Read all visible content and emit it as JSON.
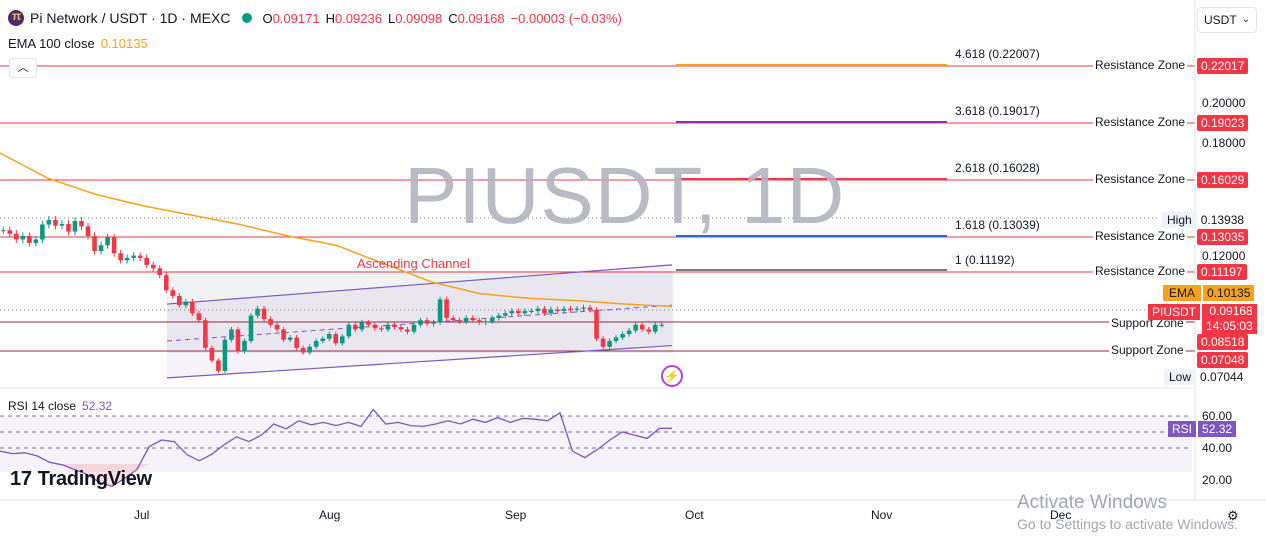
{
  "header": {
    "symbol": "Pi Network / USDT · 1D · MEXC",
    "o_label": "O",
    "o": "0.09171",
    "h_label": "H",
    "h": "0.09236",
    "l_label": "L",
    "l": "0.09098",
    "c_label": "C",
    "c": "0.09168",
    "change": "−0.00003 (−0.03%)"
  },
  "ema_indicator": {
    "label": "EMA 100 close",
    "value": "0.10135"
  },
  "currency_button": "USDT",
  "watermark": "PIUSDT, 1D",
  "channel_label": "Ascending Channel",
  "fib_levels": [
    {
      "label": "4.618 (0.22007)",
      "color": "#f7a21b"
    },
    {
      "label": "3.618 (0.19017)",
      "color": "#9c27b0"
    },
    {
      "label": "2.618 (0.16028)",
      "color": "#f23645"
    },
    {
      "label": "1.618 (0.13039)",
      "color": "#2962ff"
    },
    {
      "label": "1 (0.11192)",
      "color": "#787b86"
    }
  ],
  "zones": [
    {
      "label": "Resistance Zone",
      "price": "0.22017"
    },
    {
      "label": "Resistance Zone",
      "price": "0.19023"
    },
    {
      "label": "Resistance Zone",
      "price": "0.16029"
    },
    {
      "label": "Resistance Zone",
      "price": "0.13035"
    },
    {
      "label": "Resistance Zone",
      "price": "0.11197"
    },
    {
      "label": "Support Zone",
      "price": "0.08518"
    },
    {
      "label": "Support Zone",
      "price": "0.07048"
    }
  ],
  "axis_ticks": [
    "0.20000",
    "0.18000",
    "0.12000"
  ],
  "high_tag": {
    "label": "High",
    "value": "0.13938"
  },
  "low_tag": {
    "label": "Low",
    "value": "0.07044"
  },
  "ema_tag": {
    "label": "EMA",
    "value": "0.10135"
  },
  "current_tag": {
    "label": "PIUSDT",
    "price": "0.09168",
    "countdown": "14:05:03"
  },
  "rsi": {
    "label": "RSI 14 close",
    "value": "52.32",
    "tag_label": "RSI",
    "tag_value": "52.32",
    "ticks": [
      "60.00",
      "40.00",
      "20.00"
    ]
  },
  "branding": "TradingView",
  "x_axis_months": [
    "Jul",
    "Aug",
    "Sep",
    "Oct",
    "Nov",
    "Dec"
  ],
  "overlay": {
    "line1": "Activate Windows",
    "line2": "Go to Settings to activate Windows."
  },
  "colors": {
    "up": "#089981",
    "down": "#f23645",
    "ema": "#f7a21b",
    "rsi": "#7e57c2",
    "channel": "#7e57c2"
  },
  "chart_data": {
    "type": "candlestick",
    "interval": "1D",
    "price_closes": [
      0.1345,
      0.133,
      0.1305,
      0.132,
      0.129,
      0.1305,
      0.137,
      0.139,
      0.1365,
      0.1372,
      0.1339,
      0.1385,
      0.1362,
      0.132,
      0.1255,
      0.128,
      0.1315,
      0.1245,
      0.1215,
      0.1225,
      0.1235,
      0.1225,
      0.1195,
      0.118,
      0.115,
      0.1085,
      0.106,
      0.102,
      0.1035,
      0.0985,
      0.0955,
      0.0835,
      0.078,
      0.0735,
      0.087,
      0.0915,
      0.082,
      0.0865,
      0.0975,
      0.1005,
      0.096,
      0.0935,
      0.0915,
      0.087,
      0.088,
      0.0835,
      0.0815,
      0.084,
      0.0865,
      0.0875,
      0.0895,
      0.0855,
      0.0885,
      0.0935,
      0.0915,
      0.0945,
      0.0935,
      0.092,
      0.0915,
      0.0935,
      0.0925,
      0.0915,
      0.0905,
      0.0935,
      0.0955,
      0.094,
      0.0945,
      0.1045,
      0.0965,
      0.0955,
      0.095,
      0.0965,
      0.0955,
      0.0945,
      0.095,
      0.0965,
      0.0975,
      0.0985,
      0.0995,
      0.0985,
      0.0995,
      0.0995,
      0.1005,
      0.0985,
      0.1002,
      0.0995,
      0.1005,
      0.1,
      0.1005,
      0.101,
      0.1,
      0.0875,
      0.084,
      0.0865,
      0.088,
      0.0895,
      0.091,
      0.0935,
      0.0915,
      0.0905,
      0.0935,
      0.0935
    ],
    "ema100": [
      0.168,
      0.157,
      0.15,
      0.145,
      0.141,
      0.137,
      0.132,
      0.128,
      0.12,
      0.112,
      0.107,
      0.105,
      0.104,
      0.1025,
      0.1015
    ],
    "channel": {
      "upper": [
        0.1025,
        0.1195
      ],
      "lower": [
        0.0705,
        0.0845
      ]
    },
    "rsi_values": [
      38,
      36.5,
      37,
      35,
      31,
      29.5,
      26.5,
      23.5,
      18.5,
      16,
      21,
      26.5,
      41,
      45,
      44,
      36,
      32,
      36,
      42,
      47,
      44,
      48,
      55,
      52,
      57,
      54.5,
      56,
      54,
      56,
      53.5,
      64,
      55,
      56,
      54,
      53.5,
      55,
      57,
      55,
      58,
      56,
      59,
      56,
      58.5,
      58,
      57,
      62,
      38,
      34,
      39,
      45,
      50,
      48,
      46,
      52.3,
      52.3
    ],
    "price_range": [
      0.07044,
      0.13938
    ],
    "rsi_range": [
      20,
      70
    ],
    "x_labels": [
      "Jul",
      "Aug",
      "Sep",
      "Oct",
      "Nov",
      "Dec"
    ]
  }
}
